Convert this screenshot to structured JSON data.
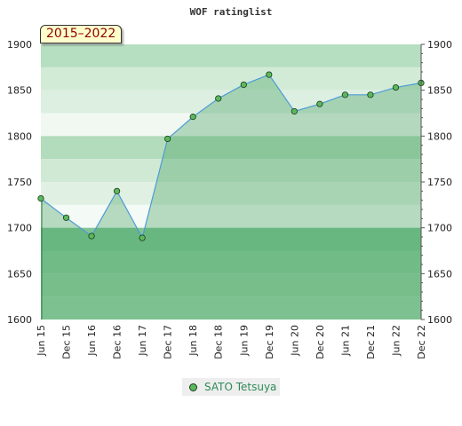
{
  "chart_data": {
    "type": "line",
    "title": "WOF ratinglist",
    "period_label": "2015–2022",
    "x": [
      "Jun 15",
      "Dec 15",
      "Jun 16",
      "Dec 16",
      "Jun 17",
      "Dec 17",
      "Jun 18",
      "Dec 18",
      "Jun 19",
      "Dec 19",
      "Jun 20",
      "Dec 20",
      "Jun 21",
      "Dec 21",
      "Jun 22",
      "Dec 22"
    ],
    "series": [
      {
        "name": "SATO Tetsuya",
        "values": [
          1732,
          1711,
          1691,
          1740,
          1689,
          1797,
          1821,
          1841,
          1856,
          1867,
          1827,
          1835,
          1845,
          1845,
          1853,
          1858
        ]
      }
    ],
    "ylim": [
      1600,
      1900
    ],
    "yticks": [
      "1600",
      "1650",
      "1700",
      "1750",
      "1800",
      "1850",
      "1900"
    ],
    "line_color": "#4d9bd6",
    "marker_color": "#5cb85c",
    "fill_color": "#5cb475",
    "legend_position": "bottom-center",
    "band_colors": [
      "#9dd3a8",
      "#8dcb9e",
      "#7fc394",
      "#d8eedd",
      "#f2f9f4",
      "#d1ebd7",
      "#b6deC0"
    ]
  }
}
